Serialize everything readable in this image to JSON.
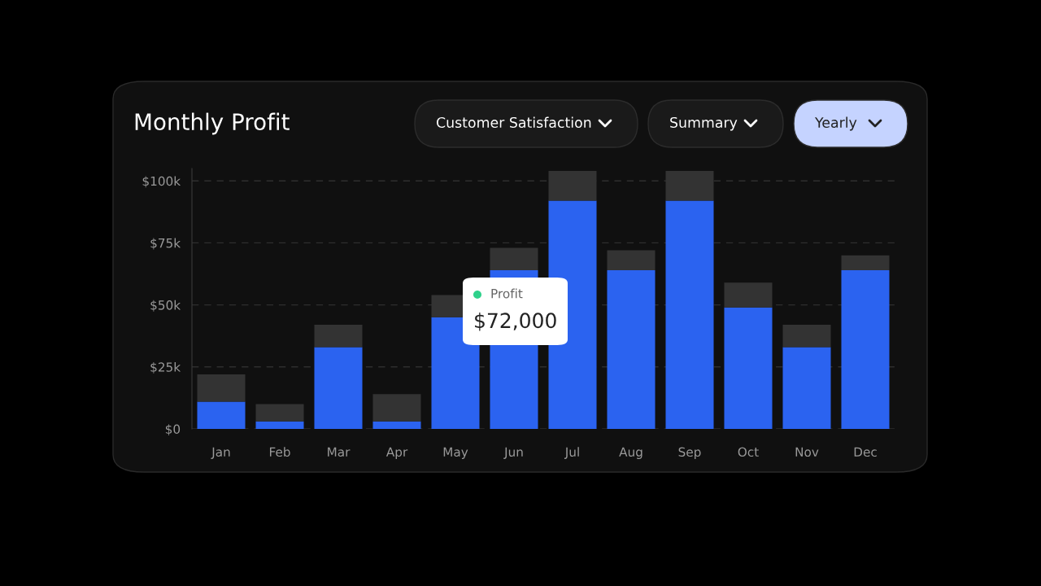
{
  "chart_data": {
    "type": "bar",
    "title": "Monthly Profit",
    "stacked": true,
    "categories": [
      "Jan",
      "Feb",
      "Mar",
      "Apr",
      "May",
      "Jun",
      "Jul",
      "Aug",
      "Sep",
      "Oct",
      "Nov",
      "Dec"
    ],
    "series": [
      {
        "color": "#2b63f0",
        "values": [
          11,
          3,
          33,
          3,
          45,
          64,
          92,
          64,
          92,
          49,
          33,
          64
        ]
      },
      {
        "color": "#333333",
        "values": [
          11,
          7,
          9,
          11,
          9,
          9,
          12,
          8,
          12,
          10,
          9,
          6
        ]
      }
    ],
    "ylim": [
      0,
      105
    ],
    "yticks": [
      {
        "value": 0,
        "label": "$0"
      },
      {
        "value": 25,
        "label": "$25k"
      },
      {
        "value": 50,
        "label": "$50k"
      },
      {
        "value": 75,
        "label": "$75k"
      },
      {
        "value": 100,
        "label": "$100k"
      }
    ],
    "grid": "y",
    "legend": false,
    "annotations": [
      "Customer Satisfaction",
      "Summary",
      "Yearly",
      "Profit",
      "$72,000"
    ]
  }
}
